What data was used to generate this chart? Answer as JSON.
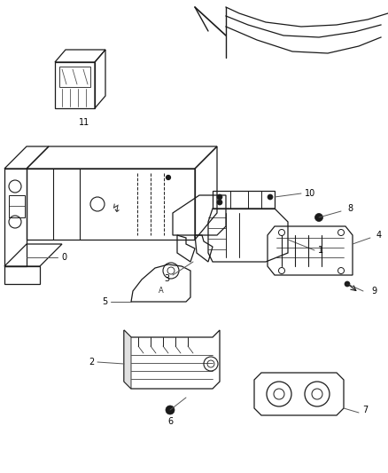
{
  "bg_color": "#ffffff",
  "line_color": "#1a1a1a",
  "fig_width": 4.38,
  "fig_height": 5.33,
  "dpi": 100,
  "gray": "#888888",
  "lightgray": "#cccccc"
}
